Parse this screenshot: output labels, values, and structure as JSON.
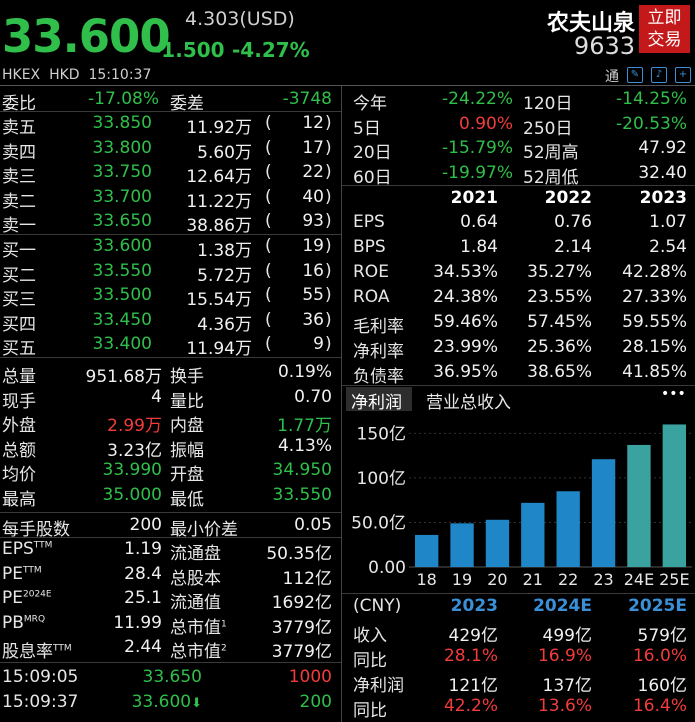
{
  "header": {
    "price": "33.600",
    "usd_price": "4.303(USD)",
    "change": "-1.500",
    "change_pct": "-4.27%",
    "stock_name": "农夫山泉",
    "stock_code": "9633",
    "trade_button": [
      "立即",
      "交易"
    ],
    "market": "HKEX",
    "currency": "HKD",
    "time": "15:10:37",
    "toolbar_label": "通"
  },
  "ratio": {
    "wb_label": "委比",
    "wb_value": "-17.08%",
    "wc_label": "委差",
    "wc_value": "-3748"
  },
  "asks": [
    {
      "label": "卖五",
      "price": "33.850",
      "vol": "11.92万",
      "open": "(",
      "count": "12",
      "close": ")"
    },
    {
      "label": "卖四",
      "price": "33.800",
      "vol": "5.60万",
      "open": "(",
      "count": "17",
      "close": ")"
    },
    {
      "label": "卖三",
      "price": "33.750",
      "vol": "12.64万",
      "open": "(",
      "count": "22",
      "close": ")"
    },
    {
      "label": "卖二",
      "price": "33.700",
      "vol": "11.22万",
      "open": "(",
      "count": "40",
      "close": ")"
    },
    {
      "label": "卖一",
      "price": "33.650",
      "vol": "38.86万",
      "open": "(",
      "count": "93",
      "close": ")"
    }
  ],
  "bids": [
    {
      "label": "买一",
      "price": "33.600",
      "vol": "1.38万",
      "open": "(",
      "count": "19",
      "close": ")"
    },
    {
      "label": "买二",
      "price": "33.550",
      "vol": "5.72万",
      "open": "(",
      "count": "16",
      "close": ")"
    },
    {
      "label": "买三",
      "price": "33.500",
      "vol": "15.54万",
      "open": "(",
      "count": "55",
      "close": ")"
    },
    {
      "label": "买四",
      "price": "33.450",
      "vol": "4.36万",
      "open": "(",
      "count": "36",
      "close": ")"
    },
    {
      "label": "买五",
      "price": "33.400",
      "vol": "11.94万",
      "open": "(",
      "count": "9",
      "close": ")"
    }
  ],
  "stats": [
    {
      "l1": "总量",
      "v1": "951.68万",
      "c1": "white",
      "l2": "换手",
      "v2": "0.19%",
      "c2": "white"
    },
    {
      "l1": "现手",
      "v1": "4",
      "c1": "white",
      "l2": "量比",
      "v2": "0.70",
      "c2": "white"
    },
    {
      "l1": "外盘",
      "v1": "2.99万",
      "c1": "red",
      "l2": "内盘",
      "v2": "1.77万",
      "c2": "green"
    },
    {
      "l1": "总额",
      "v1": "3.23亿",
      "c1": "white",
      "l2": "振幅",
      "v2": "4.13%",
      "c2": "white"
    },
    {
      "l1": "均价",
      "v1": "33.990",
      "c1": "green",
      "l2": "开盘",
      "v2": "34.950",
      "c2": "green"
    },
    {
      "l1": "最高",
      "v1": "35.000",
      "c1": "green",
      "l2": "最低",
      "v2": "33.550",
      "c2": "green"
    }
  ],
  "lot": {
    "l1": "每手股数",
    "v1": "200",
    "l2": "最小价差",
    "v2": "0.05"
  },
  "valuation": [
    {
      "l1": "EPS",
      "s1": "TTM",
      "v1": "1.19",
      "l2": "流通盘",
      "s2": "",
      "v2": "50.35亿"
    },
    {
      "l1": "PE",
      "s1": "TTM",
      "v1": "28.4",
      "l2": "总股本",
      "s2": "",
      "v2": "112亿"
    },
    {
      "l1": "PE",
      "s1": "2024E",
      "v1": "25.1",
      "l2": "流通值",
      "s2": "",
      "v2": "1692亿"
    },
    {
      "l1": "PB",
      "s1": "MRQ",
      "v1": "11.99",
      "l2": "总市值",
      "s2": "1",
      "v2": "3779亿"
    },
    {
      "l1": "股息率",
      "s1": "TTM",
      "v1": "2.44",
      "l2": "总市值",
      "s2": "2",
      "v2": "3779亿"
    }
  ],
  "ticks": [
    {
      "time": "15:09:05",
      "price": "33.650",
      "arrow": "",
      "vol": "1000",
      "vc": "red"
    },
    {
      "time": "15:09:37",
      "price": "33.600",
      "arrow": "⬇",
      "vol": "200",
      "vc": "green"
    }
  ],
  "perf": [
    {
      "l1": "今年",
      "v1": "-24.22%",
      "c1": "green",
      "l2": "120日",
      "v2": "-14.25%",
      "c2": "green"
    },
    {
      "l1": "5日",
      "v1": "0.90%",
      "c1": "red",
      "l2": "250日",
      "v2": "-20.53%",
      "c2": "green"
    },
    {
      "l1": "20日",
      "v1": "-15.79%",
      "c1": "green",
      "l2": "52周高",
      "v2": "47.92",
      "c2": "white"
    },
    {
      "l1": "60日",
      "v1": "-19.97%",
      "c1": "green",
      "l2": "52周低",
      "v2": "32.40",
      "c2": "white"
    }
  ],
  "fin": {
    "years": [
      "2021",
      "2022",
      "2023"
    ],
    "rows": [
      {
        "label": "EPS",
        "vals": [
          "0.64",
          "0.76",
          "1.07"
        ]
      },
      {
        "label": "BPS",
        "vals": [
          "1.84",
          "2.14",
          "2.54"
        ]
      },
      {
        "label": "ROE",
        "vals": [
          "34.53%",
          "35.27%",
          "42.28%"
        ]
      },
      {
        "label": "ROA",
        "vals": [
          "24.38%",
          "23.55%",
          "27.33%"
        ]
      },
      {
        "label": "毛利率",
        "vals": [
          "59.46%",
          "57.45%",
          "59.55%"
        ]
      },
      {
        "label": "净利率",
        "vals": [
          "23.99%",
          "25.36%",
          "28.15%"
        ]
      },
      {
        "label": "负债率",
        "vals": [
          "36.95%",
          "38.65%",
          "41.85%"
        ]
      }
    ]
  },
  "tabs": {
    "active": "净利润",
    "other": "营业总收入",
    "more": "•••"
  },
  "chart_data": {
    "type": "bar",
    "categories": [
      "18",
      "19",
      "20",
      "21",
      "22",
      "23",
      "24E",
      "25E"
    ],
    "values": [
      36,
      49,
      53,
      72,
      85,
      121,
      137,
      160
    ],
    "estimate_from_index": 6,
    "yticks": [
      "150亿",
      "100亿",
      "50.0亿",
      "0.00"
    ],
    "ylim": [
      0,
      165
    ],
    "colors": {
      "actual": "#1f86c8",
      "estimate": "#3aa3a0"
    }
  },
  "forecast": {
    "header": [
      "(CNY)",
      "2023",
      "2024E",
      "2025E"
    ],
    "rows": [
      {
        "label": "收入",
        "vals": [
          "429亿",
          "499亿",
          "579亿"
        ],
        "color": "white"
      },
      {
        "label": "同比",
        "vals": [
          "28.1%",
          "16.9%",
          "16.0%"
        ],
        "color": "red"
      },
      {
        "label": "净利润",
        "vals": [
          "121亿",
          "137亿",
          "160亿"
        ],
        "color": "white"
      },
      {
        "label": "同比",
        "vals": [
          "42.2%",
          "13.6%",
          "16.4%"
        ],
        "color": "red"
      }
    ]
  }
}
